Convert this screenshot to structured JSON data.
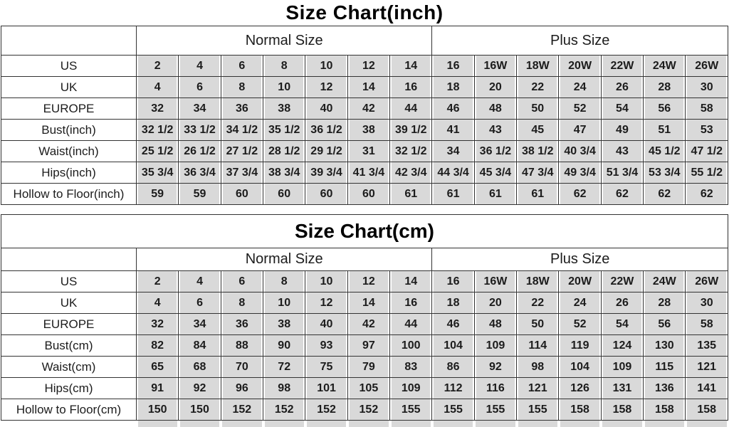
{
  "colors": {
    "background": "#ffffff",
    "cell_fill": "#d9d9d9",
    "grid_border": "#333333",
    "text": "#1c1c1c"
  },
  "chart_data": [
    {
      "type": "table",
      "title": "Size Chart(inch)",
      "column_groups": [
        {
          "label": "Normal Size",
          "span": 7
        },
        {
          "label": "Plus Size",
          "span": 7
        }
      ],
      "rows": [
        {
          "label": "US",
          "values": [
            "2",
            "4",
            "6",
            "8",
            "10",
            "12",
            "14",
            "16",
            "16W",
            "18W",
            "20W",
            "22W",
            "24W",
            "26W"
          ]
        },
        {
          "label": "UK",
          "values": [
            "4",
            "6",
            "8",
            "10",
            "12",
            "14",
            "16",
            "18",
            "20",
            "22",
            "24",
            "26",
            "28",
            "30"
          ]
        },
        {
          "label": "EUROPE",
          "values": [
            "32",
            "34",
            "36",
            "38",
            "40",
            "42",
            "44",
            "46",
            "48",
            "50",
            "52",
            "54",
            "56",
            "58"
          ]
        },
        {
          "label": "Bust(inch)",
          "values": [
            "32 1/2",
            "33 1/2",
            "34 1/2",
            "35 1/2",
            "36 1/2",
            "38",
            "39 1/2",
            "41",
            "43",
            "45",
            "47",
            "49",
            "51",
            "53"
          ]
        },
        {
          "label": "Waist(inch)",
          "values": [
            "25 1/2",
            "26 1/2",
            "27 1/2",
            "28 1/2",
            "29 1/2",
            "31",
            "32 1/2",
            "34",
            "36 1/2",
            "38 1/2",
            "40 3/4",
            "43",
            "45 1/2",
            "47 1/2"
          ]
        },
        {
          "label": "Hips(inch)",
          "values": [
            "35 3/4",
            "36 3/4",
            "37 3/4",
            "38 3/4",
            "39 3/4",
            "41 3/4",
            "42 3/4",
            "44 3/4",
            "45 3/4",
            "47 3/4",
            "49 3/4",
            "51 3/4",
            "53 3/4",
            "55 1/2"
          ]
        },
        {
          "label": "Hollow to Floor(inch)",
          "values": [
            "59",
            "59",
            "60",
            "60",
            "60",
            "60",
            "61",
            "61",
            "61",
            "61",
            "62",
            "62",
            "62",
            "62"
          ]
        }
      ]
    },
    {
      "type": "table",
      "title": "Size Chart(cm)",
      "column_groups": [
        {
          "label": "Normal Size",
          "span": 7
        },
        {
          "label": "Plus Size",
          "span": 7
        }
      ],
      "rows": [
        {
          "label": "US",
          "values": [
            "2",
            "4",
            "6",
            "8",
            "10",
            "12",
            "14",
            "16",
            "16W",
            "18W",
            "20W",
            "22W",
            "24W",
            "26W"
          ]
        },
        {
          "label": "UK",
          "values": [
            "4",
            "6",
            "8",
            "10",
            "12",
            "14",
            "16",
            "18",
            "20",
            "22",
            "24",
            "26",
            "28",
            "30"
          ]
        },
        {
          "label": "EUROPE",
          "values": [
            "32",
            "34",
            "36",
            "38",
            "40",
            "42",
            "44",
            "46",
            "48",
            "50",
            "52",
            "54",
            "56",
            "58"
          ]
        },
        {
          "label": "Bust(cm)",
          "values": [
            "82",
            "84",
            "88",
            "90",
            "93",
            "97",
            "100",
            "104",
            "109",
            "114",
            "119",
            "124",
            "130",
            "135"
          ]
        },
        {
          "label": "Waist(cm)",
          "values": [
            "65",
            "68",
            "70",
            "72",
            "75",
            "79",
            "83",
            "86",
            "92",
            "98",
            "104",
            "109",
            "115",
            "121"
          ]
        },
        {
          "label": "Hips(cm)",
          "values": [
            "91",
            "92",
            "96",
            "98",
            "101",
            "105",
            "109",
            "112",
            "116",
            "121",
            "126",
            "131",
            "136",
            "141"
          ]
        },
        {
          "label": "Hollow to Floor(cm)",
          "values": [
            "150",
            "150",
            "152",
            "152",
            "152",
            "152",
            "155",
            "155",
            "155",
            "155",
            "158",
            "158",
            "158",
            "158"
          ]
        }
      ]
    }
  ]
}
